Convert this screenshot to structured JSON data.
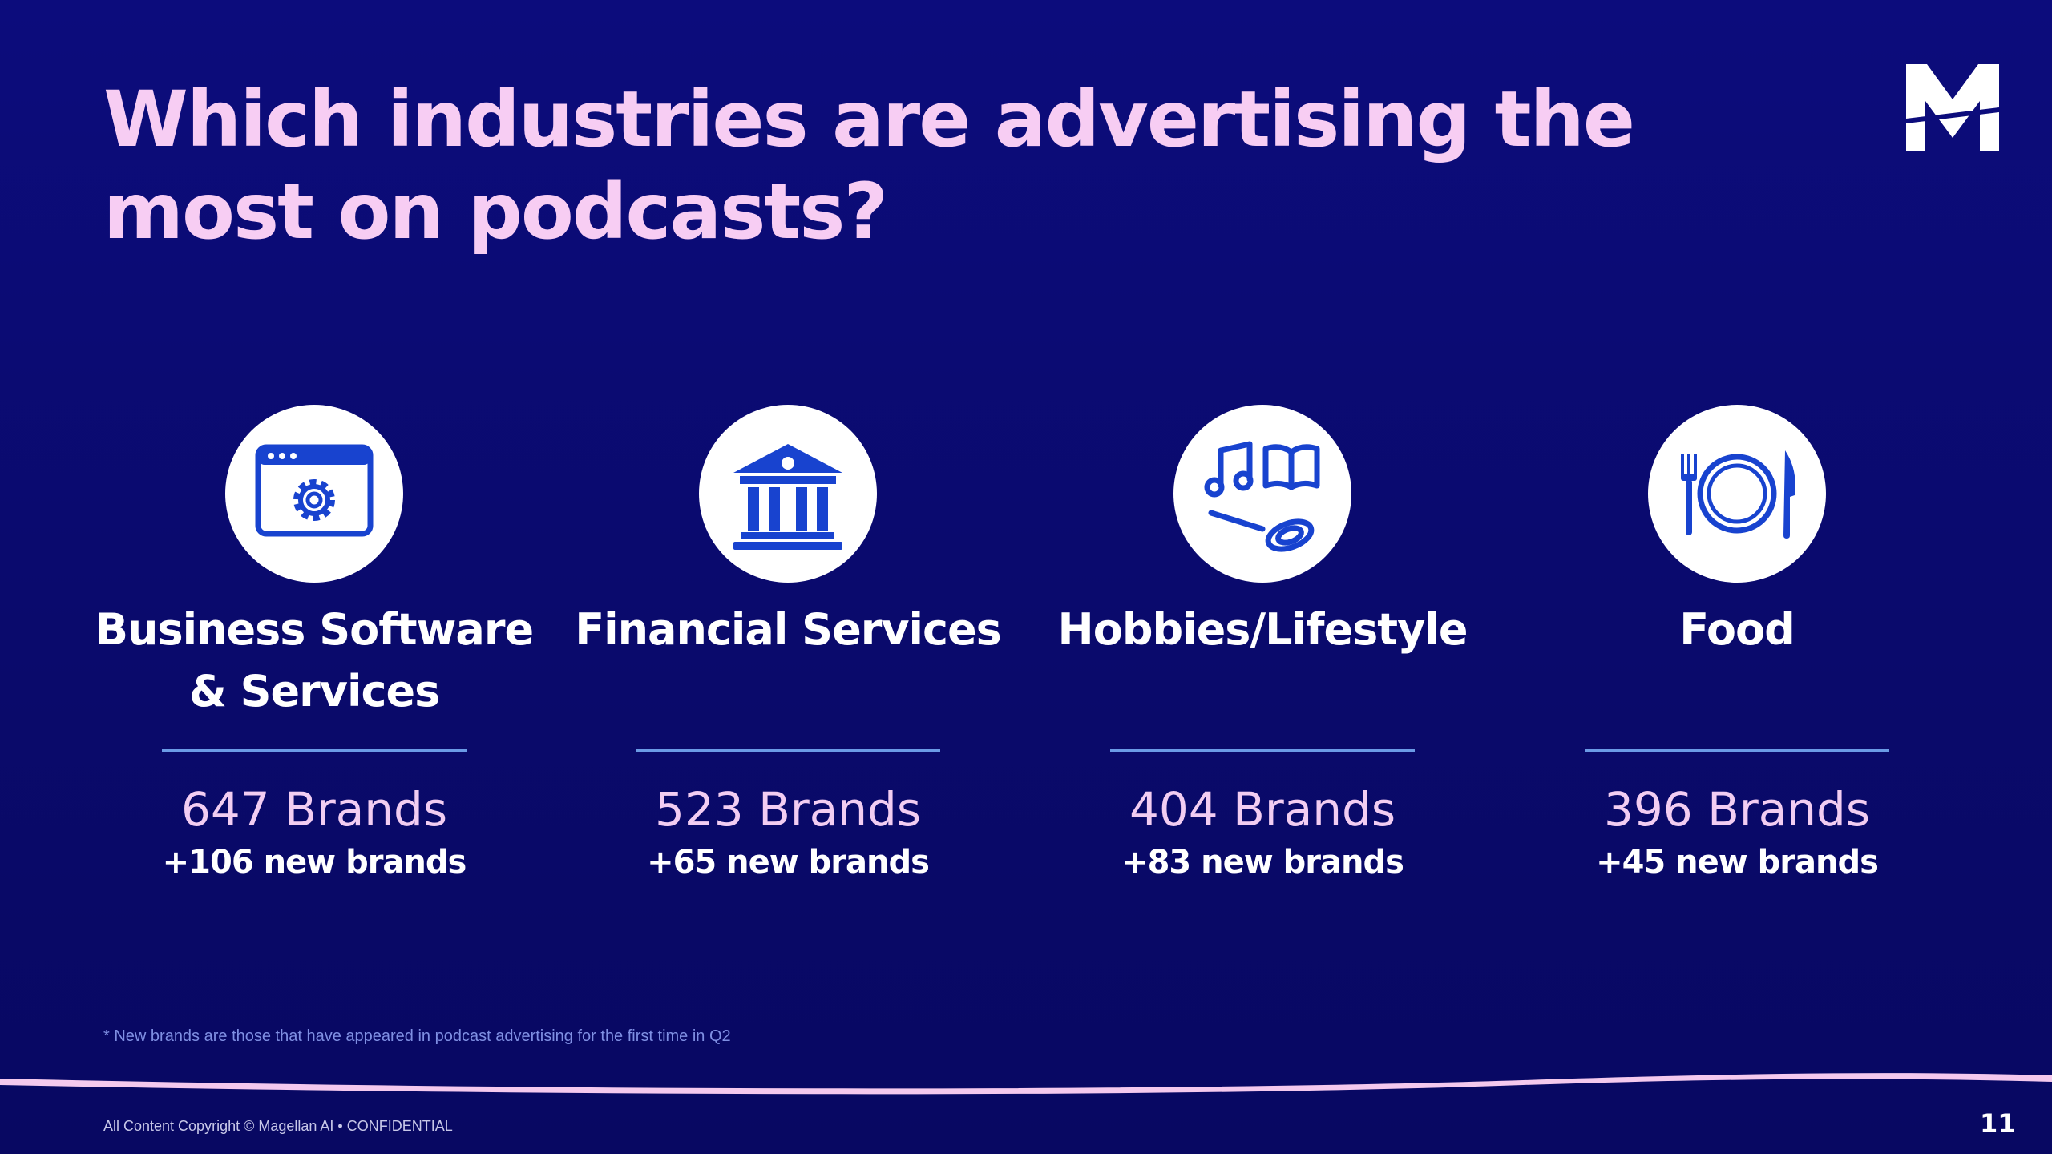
{
  "slide": {
    "title": "Which industries are advertising the most on podcasts?",
    "page_number": "11"
  },
  "logo": {
    "icon": "magellan-m-logo-icon",
    "letter": "M",
    "color": "#ffffff"
  },
  "industries": [
    {
      "icon": "browser-gear-icon",
      "label": "Business Software & Services",
      "brands": "647 Brands",
      "new_brands": "+106 new brands"
    },
    {
      "icon": "bank-building-icon",
      "label": "Financial Services",
      "brands": "523 Brands",
      "new_brands": "+65 new brands"
    },
    {
      "icon": "music-book-whisk-icon",
      "label": "Hobbies/Lifestyle",
      "brands": "404 Brands",
      "new_brands": "+83 new brands"
    },
    {
      "icon": "fork-plate-knife-icon",
      "label": "Food",
      "brands": "396 Brands",
      "new_brands": "+45 new brands"
    }
  ],
  "footnote": "* New brands are those that have appeared in podcast advertising for the first time in Q2",
  "footer": {
    "copyright": "All Content Copyright © Magellan AI • CONFIDENTIAL"
  },
  "colors": {
    "background": "#0b0b75",
    "title": "#f7cdf3",
    "icon_blue": "#1843cf",
    "rule": "#6b9be6",
    "brands_text": "#f2cdf2",
    "footnote": "#7f8fe3",
    "wave": "#f4c9ee"
  }
}
